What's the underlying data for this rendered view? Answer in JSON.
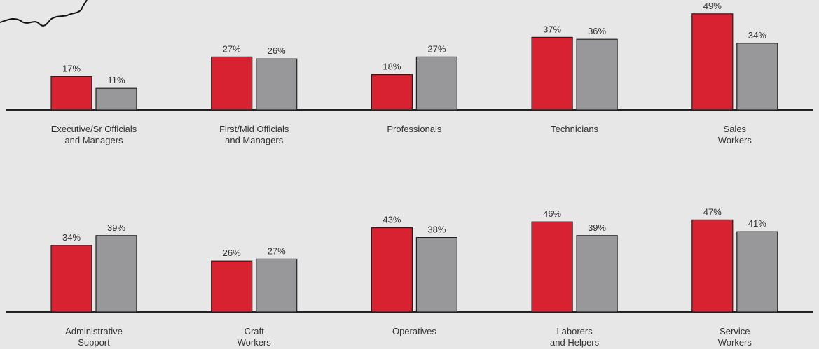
{
  "chart_data": {
    "type": "bar",
    "categories": [
      "Executive/Sr Officials\nand Managers",
      "First/Mid Officials\nand Managers",
      "Professionals",
      "Technicians",
      "Sales\nWorkers",
      "Administrative\nSupport",
      "Craft\nWorkers",
      "Operatives",
      "Laborers\nand Helpers",
      "Service\nWorkers"
    ],
    "series": [
      {
        "color": "#d92231",
        "values": [
          17,
          27,
          18,
          37,
          49,
          34,
          26,
          43,
          46,
          47
        ],
        "value_labels": [
          "17%",
          "27%",
          "18%",
          "37%",
          "49%",
          "34%",
          "26%",
          "43%",
          "46%",
          "47%"
        ]
      },
      {
        "color": "#98989a",
        "values": [
          11,
          26,
          27,
          36,
          34,
          39,
          27,
          38,
          39,
          41
        ],
        "value_labels": [
          "11%",
          "26%",
          "27%",
          "36%",
          "34%",
          "39%",
          "27%",
          "38%",
          "39%",
          "41%"
        ]
      }
    ]
  }
}
